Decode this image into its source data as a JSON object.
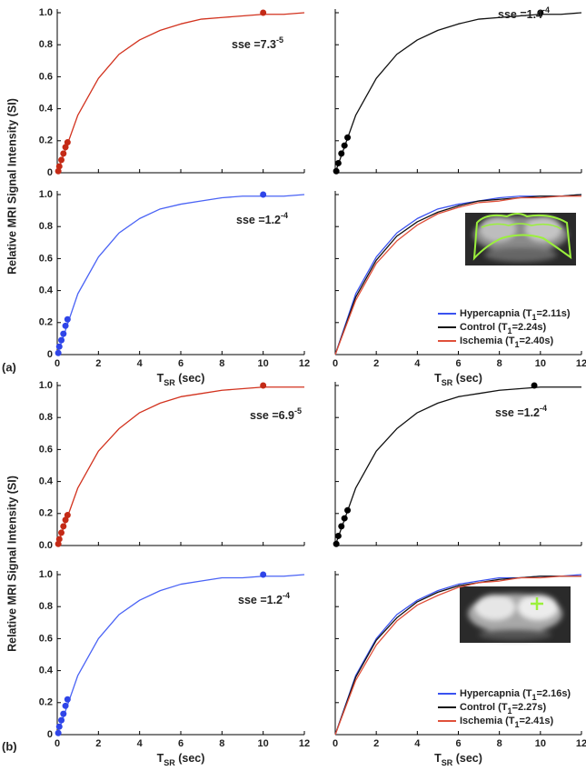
{
  "figure": {
    "y_label": [
      "Relative MRI Signal Intensity (SI)",
      "Relative MRI Signal Intensity (SI)"
    ],
    "panel_labels": [
      "(a)",
      "(b)"
    ]
  },
  "chart_data": [
    {
      "type": "line",
      "xlim": [
        0,
        12
      ],
      "ylim": [
        0,
        1
      ],
      "xticks": [
        0,
        2,
        4,
        6,
        8,
        10,
        12
      ],
      "xtick_labels": false,
      "yticks": [
        0,
        0.2,
        0.4,
        0.6,
        0.8,
        {
          "value": 1,
          "label": "1.0"
        }
      ],
      "ytick_labels": true,
      "annotation": {
        "text": "sse =7.3",
        "sup": "-5"
      },
      "series": [
        {
          "style": "line",
          "color": "#d2321e",
          "x": [
            0,
            1,
            2,
            3,
            4,
            5,
            6,
            7,
            8,
            9,
            10,
            11,
            12
          ],
          "values": [
            0,
            0.36,
            0.59,
            0.74,
            0.83,
            0.89,
            0.93,
            0.96,
            0.97,
            0.98,
            0.99,
            0.99,
            1.0
          ]
        },
        {
          "style": "markers",
          "color": "#c42a16",
          "x": [
            0.05,
            0.1,
            0.2,
            0.3,
            0.4,
            0.5,
            10
          ],
          "values": [
            0.01,
            0.04,
            0.08,
            0.12,
            0.16,
            0.19,
            1.0
          ]
        }
      ]
    },
    {
      "type": "line",
      "xlim": [
        0,
        12
      ],
      "ylim": [
        0,
        1
      ],
      "xticks": [
        0,
        2,
        4,
        6,
        8,
        10,
        12
      ],
      "xtick_labels": false,
      "yticks": [
        0,
        0.2,
        0.4,
        0.6,
        0.8,
        1
      ],
      "ytick_labels": false,
      "annotation": {
        "text": "sse =1.4",
        "sup": "-4"
      },
      "series": [
        {
          "style": "line",
          "color": "#111111",
          "x": [
            0,
            1,
            2,
            3,
            4,
            5,
            6,
            7,
            8,
            9,
            10,
            11,
            12
          ],
          "values": [
            0,
            0.36,
            0.59,
            0.74,
            0.83,
            0.89,
            0.93,
            0.96,
            0.97,
            0.98,
            0.99,
            0.99,
            1.0
          ]
        },
        {
          "style": "markers",
          "color": "#000000",
          "x": [
            0.05,
            0.15,
            0.3,
            0.45,
            0.6,
            10
          ],
          "values": [
            0.01,
            0.06,
            0.12,
            0.17,
            0.22,
            1.0
          ]
        }
      ]
    },
    {
      "type": "line",
      "xlim": [
        0,
        12
      ],
      "ylim": [
        0,
        1
      ],
      "xticks": [
        0,
        2,
        4,
        6,
        8,
        10,
        12
      ],
      "xtick_labels": true,
      "yticks": [
        0,
        0.2,
        0.4,
        0.6,
        0.8,
        {
          "value": 1,
          "label": "1.0"
        }
      ],
      "ytick_labels": true,
      "x_label": {
        "text": "T",
        "sub": "SR",
        "after": " (sec)"
      },
      "annotation": {
        "text": "sse =1.2",
        "sup": "-4"
      },
      "series": [
        {
          "style": "line",
          "color": "#4a63f5",
          "x": [
            0,
            1,
            2,
            3,
            4,
            5,
            6,
            7,
            8,
            9,
            10,
            11,
            12
          ],
          "values": [
            0,
            0.38,
            0.61,
            0.76,
            0.85,
            0.91,
            0.94,
            0.96,
            0.98,
            0.99,
            0.99,
            0.99,
            1.0
          ]
        },
        {
          "style": "markers",
          "color": "#2f45e8",
          "x": [
            0.05,
            0.1,
            0.2,
            0.3,
            0.4,
            0.5,
            10
          ],
          "values": [
            0.01,
            0.05,
            0.09,
            0.13,
            0.18,
            0.22,
            1.0
          ]
        }
      ]
    },
    {
      "type": "line",
      "xlim": [
        0,
        12
      ],
      "ylim": [
        0,
        1
      ],
      "xticks": [
        0,
        2,
        4,
        6,
        8,
        10,
        12
      ],
      "xtick_labels": true,
      "yticks": [
        0,
        0.2,
        0.4,
        0.6,
        0.8,
        1
      ],
      "ytick_labels": false,
      "x_label": {
        "text": "T",
        "sub": "SR",
        "after": " (sec)"
      },
      "series": [
        {
          "style": "line",
          "color": "#3a52f0",
          "name": {
            "text": "Hypercapnia (T",
            "sub": "1",
            "after": "=2.11s)"
          },
          "x": [
            0,
            1,
            2,
            3,
            4,
            5,
            6,
            7,
            8,
            9,
            10,
            11,
            12
          ],
          "values": [
            0,
            0.38,
            0.61,
            0.76,
            0.85,
            0.91,
            0.94,
            0.96,
            0.98,
            0.99,
            0.99,
            0.99,
            1.0
          ]
        },
        {
          "style": "line",
          "color": "#111111",
          "name": {
            "text": "Control (T",
            "sub": "1",
            "after": "=2.24s)"
          },
          "x": [
            0,
            1,
            2,
            3,
            4,
            5,
            6,
            7,
            8,
            9,
            10,
            11,
            12
          ],
          "values": [
            0,
            0.36,
            0.59,
            0.74,
            0.83,
            0.89,
            0.93,
            0.96,
            0.97,
            0.98,
            0.99,
            0.99,
            1.0
          ]
        },
        {
          "style": "line",
          "color": "#e0503a",
          "name": {
            "text": "Ischemia (T",
            "sub": "1",
            "after": "=2.40s)"
          },
          "x": [
            0,
            1,
            2,
            3,
            4,
            5,
            6,
            7,
            8,
            9,
            10,
            11,
            12
          ],
          "values": [
            0,
            0.34,
            0.57,
            0.71,
            0.81,
            0.88,
            0.92,
            0.95,
            0.96,
            0.98,
            0.98,
            0.99,
            0.99
          ]
        }
      ]
    },
    {
      "type": "line",
      "xlim": [
        0,
        12
      ],
      "ylim": [
        0,
        1
      ],
      "xticks": [
        0,
        2,
        4,
        6,
        8,
        10,
        12
      ],
      "xtick_labels": false,
      "yticks": [
        {
          "value": 0,
          "label": "0.0"
        },
        0.2,
        0.4,
        0.6,
        0.8,
        {
          "value": 1,
          "label": "1.0"
        }
      ],
      "ytick_labels": true,
      "annotation": {
        "text": "sse =6.9",
        "sup": "-5"
      },
      "series": [
        {
          "style": "line",
          "color": "#d2321e",
          "x": [
            0,
            1,
            2,
            3,
            4,
            5,
            6,
            7,
            8,
            9,
            10,
            11,
            12
          ],
          "values": [
            0,
            0.36,
            0.59,
            0.73,
            0.83,
            0.89,
            0.93,
            0.95,
            0.97,
            0.98,
            0.99,
            0.99,
            0.99
          ]
        },
        {
          "style": "markers",
          "color": "#c42a16",
          "x": [
            0.05,
            0.1,
            0.2,
            0.3,
            0.4,
            0.5,
            10
          ],
          "values": [
            0.01,
            0.04,
            0.08,
            0.12,
            0.16,
            0.19,
            1.0
          ]
        }
      ]
    },
    {
      "type": "line",
      "xlim": [
        0,
        12
      ],
      "ylim": [
        0,
        1
      ],
      "xticks": [
        0,
        2,
        4,
        6,
        8,
        10,
        12
      ],
      "xtick_labels": false,
      "yticks": [
        0,
        0.2,
        0.4,
        0.6,
        0.8,
        1
      ],
      "ytick_labels": false,
      "annotation": {
        "text": "sse =1.2",
        "sup": "-4"
      },
      "series": [
        {
          "style": "line",
          "color": "#111111",
          "x": [
            0,
            1,
            2,
            3,
            4,
            5,
            6,
            7,
            8,
            9,
            10,
            11,
            12
          ],
          "values": [
            0,
            0.36,
            0.59,
            0.73,
            0.83,
            0.89,
            0.93,
            0.95,
            0.97,
            0.98,
            0.99,
            0.99,
            0.99
          ]
        },
        {
          "style": "markers",
          "color": "#000000",
          "x": [
            0.05,
            0.15,
            0.3,
            0.45,
            0.6,
            9.7
          ],
          "values": [
            0.01,
            0.06,
            0.12,
            0.17,
            0.22,
            1.0
          ]
        }
      ]
    },
    {
      "type": "line",
      "xlim": [
        0,
        12
      ],
      "ylim": [
        0,
        1
      ],
      "xticks": [
        0,
        2,
        4,
        6,
        8,
        10,
        12
      ],
      "xtick_labels": true,
      "yticks": [
        0,
        0.2,
        0.4,
        0.6,
        0.8,
        {
          "value": 1,
          "label": "1.0"
        }
      ],
      "ytick_labels": true,
      "x_label": {
        "text": "T",
        "sub": "SR",
        "after": " (sec)"
      },
      "annotation": {
        "text": "sse =1.2",
        "sup": "-4"
      },
      "series": [
        {
          "style": "line",
          "color": "#4a63f5",
          "x": [
            0,
            1,
            2,
            3,
            4,
            5,
            6,
            7,
            8,
            9,
            10,
            11,
            12
          ],
          "values": [
            0,
            0.37,
            0.6,
            0.75,
            0.84,
            0.9,
            0.94,
            0.96,
            0.98,
            0.98,
            0.99,
            0.99,
            1.0
          ]
        },
        {
          "style": "markers",
          "color": "#2f45e8",
          "x": [
            0.05,
            0.1,
            0.2,
            0.3,
            0.4,
            0.5,
            10
          ],
          "values": [
            0.01,
            0.05,
            0.09,
            0.13,
            0.18,
            0.22,
            1.0
          ]
        }
      ]
    },
    {
      "type": "line",
      "xlim": [
        0,
        12
      ],
      "ylim": [
        0,
        1
      ],
      "xticks": [
        0,
        2,
        4,
        6,
        8,
        10,
        12
      ],
      "xtick_labels": true,
      "yticks": [
        0,
        0.2,
        0.4,
        0.6,
        0.8,
        1
      ],
      "ytick_labels": false,
      "x_label": {
        "text": "T",
        "sub": "SR",
        "after": " (sec)"
      },
      "series": [
        {
          "style": "line",
          "color": "#3a52f0",
          "name": {
            "text": "Hypercapnia (T",
            "sub": "1",
            "after": "=2.16s)"
          },
          "x": [
            0,
            1,
            2,
            3,
            4,
            5,
            6,
            7,
            8,
            9,
            10,
            11,
            12
          ],
          "values": [
            0,
            0.37,
            0.6,
            0.75,
            0.84,
            0.9,
            0.94,
            0.96,
            0.98,
            0.98,
            0.99,
            0.99,
            1.0
          ]
        },
        {
          "style": "line",
          "color": "#111111",
          "name": {
            "text": "Control (T",
            "sub": "1",
            "after": "=2.27s)"
          },
          "x": [
            0,
            1,
            2,
            3,
            4,
            5,
            6,
            7,
            8,
            9,
            10,
            11,
            12
          ],
          "values": [
            0,
            0.36,
            0.59,
            0.73,
            0.83,
            0.89,
            0.93,
            0.95,
            0.97,
            0.98,
            0.99,
            0.99,
            0.99
          ]
        },
        {
          "style": "line",
          "color": "#e0503a",
          "name": {
            "text": "Ischemia (T",
            "sub": "1",
            "after": "=2.41s)"
          },
          "x": [
            0,
            1,
            2,
            3,
            4,
            5,
            6,
            7,
            8,
            9,
            10,
            11,
            12
          ],
          "values": [
            0,
            0.34,
            0.56,
            0.71,
            0.81,
            0.87,
            0.92,
            0.95,
            0.96,
            0.98,
            0.98,
            0.99,
            0.99
          ]
        }
      ]
    }
  ]
}
